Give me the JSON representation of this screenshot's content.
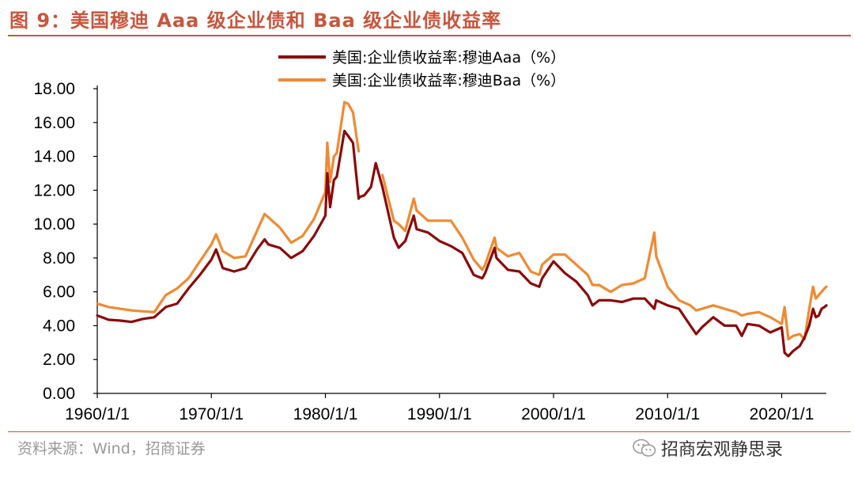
{
  "figure": {
    "title": "图 9：美国穆迪 Aaa 级企业债和 Baa 级企业债收益率",
    "source": "资料来源：Wind，招商证券",
    "brand": "招商宏观静思录",
    "brand_icon": "wechat-icon"
  },
  "colors": {
    "aaa": "#8b0a0a",
    "baa": "#ef8a33",
    "accent": "#c8553d"
  },
  "chart_data": {
    "type": "line",
    "title": "",
    "xlabel": "",
    "ylabel": "",
    "x_ticks": [
      "1960/1/1",
      "1970/1/1",
      "1980/1/1",
      "1990/1/1",
      "2000/1/1",
      "2010/1/1",
      "2020/1/1"
    ],
    "y_ticks": [
      "0.00",
      "2.00",
      "4.00",
      "6.00",
      "8.00",
      "10.00",
      "12.00",
      "14.00",
      "16.00",
      "18.00"
    ],
    "ylim": [
      0,
      18
    ],
    "xlim": [
      "1960/1/1",
      "2023/11/30"
    ],
    "grid": false,
    "legend_position": "top-center",
    "series": [
      {
        "name": "美国:企业债收益率:穆迪Aaa（%）",
        "x": [
          "1960/1/1",
          "1961/1/1",
          "1962/1/1",
          "1963/1/1",
          "1964/1/1",
          "1965/1/1",
          "1966/1/1",
          "1967/1/1",
          "1968/1/1",
          "1969/1/1",
          "1970/1/1",
          "1970/6/1",
          "1971/1/1",
          "1972/1/1",
          "1973/1/1",
          "1974/1/1",
          "1974/9/1",
          "1975/1/1",
          "1976/1/1",
          "1977/1/1",
          "1978/1/1",
          "1979/1/1",
          "1980/1/1",
          "1980/3/1",
          "1980/6/1",
          "1980/10/1",
          "1981/1/1",
          "1981/9/1",
          "1982/1/1",
          "1982/6/1",
          "1982/12/1",
          "1983/1/1",
          "1983/6/1",
          "1984/1/1",
          "1984/6/1",
          "1985/1/1",
          "1986/1/1",
          "1986/6/1",
          "1987/1/1",
          "1987/10/1",
          "1988/1/1",
          "1989/1/1",
          "1990/1/1",
          "1991/1/1",
          "1992/1/1",
          "1993/1/1",
          "1993/10/1",
          "1994/1/1",
          "1994/11/1",
          "1995/1/1",
          "1996/1/1",
          "1997/1/1",
          "1998/1/1",
          "1998/10/1",
          "1999/1/1",
          "2000/1/1",
          "2001/1/1",
          "2002/1/1",
          "2003/1/1",
          "2003/6/1",
          "2004/1/1",
          "2005/1/1",
          "2006/1/1",
          "2007/1/1",
          "2008/1/1",
          "2008/11/1",
          "2009/1/1",
          "2010/1/1",
          "2011/1/1",
          "2012/1/1",
          "2012/7/1",
          "2013/1/1",
          "2014/1/1",
          "2015/1/1",
          "2016/1/1",
          "2016/7/1",
          "2017/1/1",
          "2018/1/1",
          "2019/1/1",
          "2020/1/1",
          "2020/4/1",
          "2020/8/1",
          "2021/1/1",
          "2021/8/1",
          "2022/1/1",
          "2022/6/1",
          "2022/10/1",
          "2023/1/1",
          "2023/4/1",
          "2023/7/1",
          "2023/10/1",
          "2023/11/30"
        ],
        "values": [
          4.6,
          4.35,
          4.3,
          4.22,
          4.4,
          4.5,
          5.1,
          5.3,
          6.2,
          7.0,
          7.9,
          8.5,
          7.4,
          7.2,
          7.4,
          8.5,
          9.1,
          8.8,
          8.6,
          8.0,
          8.4,
          9.3,
          10.5,
          13.0,
          11.0,
          12.6,
          12.8,
          15.5,
          15.2,
          14.8,
          11.5,
          11.6,
          11.7,
          12.2,
          13.6,
          12.2,
          9.2,
          8.6,
          9.0,
          10.5,
          9.7,
          9.5,
          9.0,
          8.7,
          8.3,
          7.0,
          6.8,
          7.1,
          8.6,
          8.0,
          7.3,
          7.2,
          6.5,
          6.3,
          6.8,
          7.8,
          7.1,
          6.6,
          5.8,
          5.2,
          5.5,
          5.5,
          5.4,
          5.6,
          5.6,
          5.0,
          5.5,
          5.2,
          5.0,
          4.0,
          3.5,
          3.9,
          4.5,
          4.0,
          4.0,
          3.4,
          4.1,
          4.0,
          3.6,
          3.9,
          2.4,
          2.2,
          2.5,
          2.8,
          3.3,
          4.0,
          5.0,
          4.5,
          4.6,
          5.0,
          5.1,
          5.2
        ]
      },
      {
        "name": "美国:企业债收益率:穆迪Baa（%）",
        "x": [
          "1960/1/1",
          "1961/1/1",
          "1962/1/1",
          "1963/1/1",
          "1964/1/1",
          "1965/1/1",
          "1966/1/1",
          "1967/1/1",
          "1968/1/1",
          "1969/1/1",
          "1970/1/1",
          "1970/6/1",
          "1971/1/1",
          "1972/1/1",
          "1973/1/1",
          "1974/1/1",
          "1974/9/1",
          "1975/1/1",
          "1976/1/1",
          "1977/1/1",
          "1978/1/1",
          "1979/1/1",
          "1980/1/1",
          "1980/3/1",
          "1980/6/1",
          "1980/10/1",
          "1981/1/1",
          "1981/9/1",
          "1982/1/1",
          "1982/6/1",
          "1982/12/1",
          "1983/1/1",
          "1983/6/1",
          "1984/1/1",
          "1984/6/1",
          "1985/1/1",
          "1986/1/1",
          "1986/6/1",
          "1987/1/1",
          "1987/10/1",
          "1988/1/1",
          "1989/1/1",
          "1990/1/1",
          "1991/1/1",
          "1992/1/1",
          "1993/1/1",
          "1993/10/1",
          "1994/1/1",
          "1994/11/1",
          "1995/1/1",
          "1996/1/1",
          "1997/1/1",
          "1998/1/1",
          "1998/10/1",
          "1999/1/1",
          "2000/1/1",
          "2001/1/1",
          "2002/1/1",
          "2003/1/1",
          "2003/6/1",
          "2004/1/1",
          "2005/1/1",
          "2006/1/1",
          "2007/1/1",
          "2008/1/1",
          "2008/11/1",
          "2009/1/1",
          "2010/1/1",
          "2011/1/1",
          "2012/1/1",
          "2012/7/1",
          "2013/1/1",
          "2014/1/1",
          "2015/1/1",
          "2016/1/1",
          "2016/7/1",
          "2017/1/1",
          "2018/1/1",
          "2019/1/1",
          "2020/1/1",
          "2020/4/1",
          "2020/8/1",
          "2021/1/1",
          "2021/8/1",
          "2022/1/1",
          "2022/6/1",
          "2022/10/1",
          "2023/1/1",
          "2023/4/1",
          "2023/7/1",
          "2023/10/1",
          "2023/11/30"
        ],
        "values": [
          5.3,
          5.1,
          5.0,
          4.9,
          4.85,
          4.8,
          5.8,
          6.2,
          6.8,
          7.8,
          8.8,
          9.4,
          8.4,
          8.0,
          8.1,
          9.6,
          10.6,
          10.4,
          9.8,
          8.9,
          9.3,
          10.3,
          11.9,
          14.8,
          12.5,
          14.0,
          14.2,
          17.2,
          17.1,
          16.6,
          14.3,
          null,
          null,
          null,
          null,
          12.9,
          10.2,
          10.0,
          9.6,
          11.5,
          10.8,
          10.2,
          10.2,
          10.2,
          9.2,
          7.9,
          7.3,
          7.6,
          9.2,
          8.6,
          8.1,
          8.3,
          7.2,
          7.0,
          7.6,
          8.2,
          8.2,
          7.6,
          7.0,
          6.4,
          6.4,
          6.0,
          6.4,
          6.5,
          6.8,
          9.5,
          8.1,
          6.3,
          5.5,
          5.2,
          4.9,
          5.0,
          5.2,
          5.0,
          4.8,
          4.6,
          4.7,
          4.8,
          4.5,
          4.1,
          5.1,
          3.2,
          3.4,
          3.5,
          3.2,
          5.0,
          6.3,
          5.6,
          5.8,
          6.0,
          6.2,
          6.3
        ]
      }
    ]
  }
}
